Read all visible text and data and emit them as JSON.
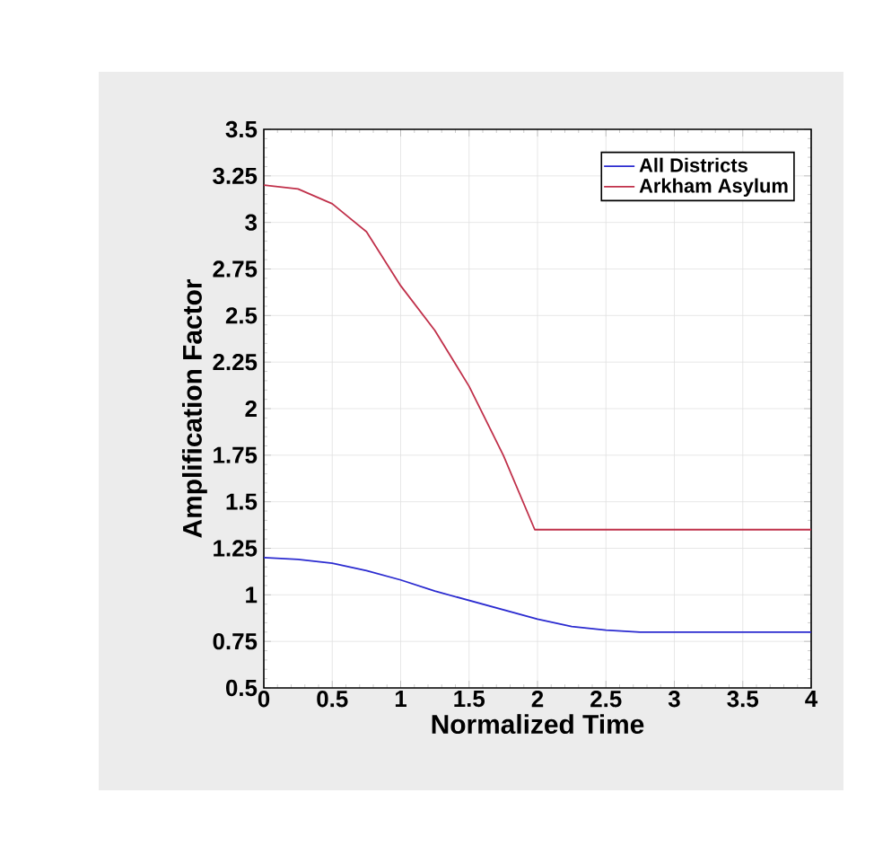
{
  "chart_data": {
    "type": "line",
    "xlabel": "Normalized Time",
    "ylabel": "Amplification Factor",
    "xlim": [
      0,
      4
    ],
    "ylim": [
      0.5,
      3.5
    ],
    "xticks": [
      0,
      0.5,
      1,
      1.5,
      2,
      2.5,
      3,
      3.5,
      4
    ],
    "yticks": [
      0.5,
      0.75,
      1,
      1.25,
      1.5,
      1.75,
      2,
      2.25,
      2.5,
      2.75,
      3,
      3.25,
      3.5
    ],
    "grid": true,
    "legend": "top right",
    "marker": "none",
    "line_style": "solid",
    "series": [
      {
        "name": "All Districts",
        "color": "#2b2bd0",
        "x": [
          0,
          0.25,
          0.5,
          0.75,
          1,
          1.25,
          1.5,
          1.75,
          2,
          2.25,
          2.5,
          2.75,
          3,
          3.5,
          4
        ],
        "values": [
          1.2,
          1.19,
          1.17,
          1.13,
          1.08,
          1.02,
          0.97,
          0.92,
          0.87,
          0.83,
          0.81,
          0.8,
          0.8,
          0.8,
          0.8
        ]
      },
      {
        "name": "Arkham Asylum",
        "color": "#c0304a",
        "x": [
          0,
          0.25,
          0.5,
          0.75,
          1,
          1.25,
          1.5,
          1.75,
          1.98,
          2.5,
          3,
          3.5,
          4
        ],
        "values": [
          3.2,
          3.18,
          3.1,
          2.95,
          2.66,
          2.42,
          2.12,
          1.75,
          1.35,
          1.35,
          1.35,
          1.35,
          1.35
        ]
      }
    ]
  }
}
